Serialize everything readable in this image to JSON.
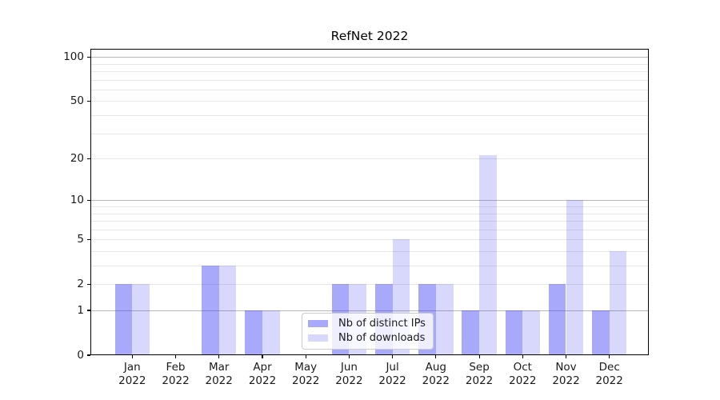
{
  "chart_data": {
    "type": "bar",
    "title": "RefNet 2022",
    "categories": [
      "Jan 2022",
      "Feb 2022",
      "Mar 2022",
      "Apr 2022",
      "May 2022",
      "Jun 2022",
      "Jul 2022",
      "Aug 2022",
      "Sep 2022",
      "Oct 2022",
      "Nov 2022",
      "Dec 2022"
    ],
    "series": [
      {
        "name": "Nb of distinct IPs",
        "color": "#a8a8f6",
        "fill": "rgba(60,60,245,0.44)",
        "values": [
          2,
          0,
          3,
          1,
          0,
          2,
          2,
          2,
          1,
          1,
          2,
          1
        ]
      },
      {
        "name": "Nb of downloads",
        "color": "#d9d9fa",
        "fill": "rgba(60,60,245,0.20)",
        "values": [
          2,
          0,
          3,
          1,
          0,
          2,
          5,
          2,
          21,
          1,
          10,
          4
        ]
      }
    ],
    "yscale": "log-like (position proportional to log10(value+1))",
    "ylim": [
      0,
      113
    ],
    "y_tick_labels": [
      "0",
      "1",
      "2",
      "5",
      "10",
      "20",
      "50",
      "100"
    ],
    "y_major_gridlines": [
      1,
      10,
      100
    ],
    "y_minor_gridlines": [
      2,
      3,
      4,
      5,
      6,
      7,
      8,
      9,
      20,
      30,
      40,
      50,
      60,
      70,
      80,
      90
    ],
    "grid": "horizontal, major and minor",
    "legend": {
      "position": "lower center, inside axes",
      "labels": [
        "Nb of distinct IPs",
        "Nb of downloads"
      ]
    }
  },
  "colors": {
    "bar_dark": "#a8a8f6",
    "bar_light": "#d9d9fa",
    "grid_major": "#b8b8b8",
    "grid_minor": "#e8e8e8",
    "axis": "#000000",
    "text": "#1a1a1a",
    "legend_border": "#cccccc"
  }
}
